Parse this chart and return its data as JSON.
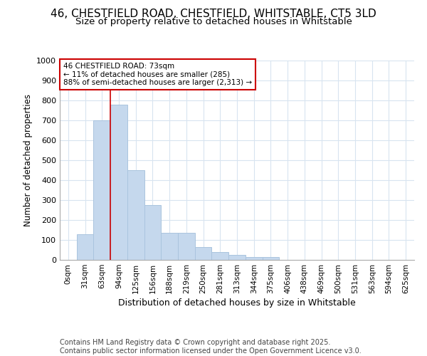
{
  "title_line1": "46, CHESTFIELD ROAD, CHESTFIELD, WHITSTABLE, CT5 3LD",
  "title_line2": "Size of property relative to detached houses in Whitstable",
  "xlabel": "Distribution of detached houses by size in Whitstable",
  "ylabel": "Number of detached properties",
  "footnote": "Contains HM Land Registry data © Crown copyright and database right 2025.\nContains public sector information licensed under the Open Government Licence v3.0.",
  "bin_labels": [
    "0sqm",
    "31sqm",
    "63sqm",
    "94sqm",
    "125sqm",
    "156sqm",
    "188sqm",
    "219sqm",
    "250sqm",
    "281sqm",
    "313sqm",
    "344sqm",
    "375sqm",
    "406sqm",
    "438sqm",
    "469sqm",
    "500sqm",
    "531sqm",
    "563sqm",
    "594sqm",
    "625sqm"
  ],
  "bar_values": [
    0,
    130,
    700,
    780,
    450,
    275,
    135,
    135,
    65,
    40,
    25,
    15,
    15,
    0,
    0,
    0,
    0,
    0,
    0,
    0,
    0
  ],
  "bar_color": "#c5d8ed",
  "bar_edge_color": "#aac4de",
  "red_line_bin": 2,
  "annotation_text": "46 CHESTFIELD ROAD: 73sqm\n← 11% of detached houses are smaller (285)\n88% of semi-detached houses are larger (2,313) →",
  "annotation_box_color": "#ffffff",
  "annotation_border_color": "#cc0000",
  "ylim": [
    0,
    1000
  ],
  "yticks": [
    0,
    100,
    200,
    300,
    400,
    500,
    600,
    700,
    800,
    900,
    1000
  ],
  "background_color": "#ffffff",
  "grid_color": "#d8e4f0",
  "title_fontsize": 11,
  "subtitle_fontsize": 9.5,
  "footnote_fontsize": 7
}
